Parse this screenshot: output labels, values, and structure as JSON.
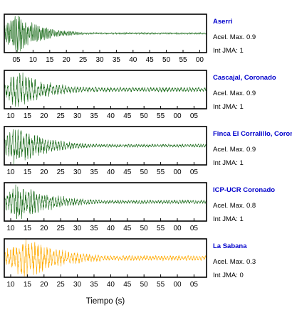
{
  "chart_data": {
    "type": "line",
    "xlabel": "Tiempo (s)",
    "panels": [
      {
        "station": "Aserri",
        "max_accel_label": "Acel. Max.",
        "max_accel": "0.9",
        "jma_label": "Int JMA:",
        "jma": "1",
        "color": "#1a6b1a",
        "tick_labels": [
          "05",
          "10",
          "15",
          "20",
          "25",
          "30",
          "35",
          "40",
          "45",
          "50",
          "55",
          "00"
        ],
        "signal": {
          "peak_s": 3.5,
          "amplitude": 0.95,
          "decay": 7.0,
          "tail": 0.04,
          "period_s": 0.45,
          "seed": 3
        }
      },
      {
        "station": "Cascajal, Coronado",
        "max_accel_label": "Acel. Max.",
        "max_accel": "0.9",
        "jma_label": "Int JMA:",
        "jma": "1",
        "color": "#1a6b1a",
        "tick_labels": [
          "10",
          "15",
          "20",
          "25",
          "30",
          "35",
          "40",
          "45",
          "50",
          "55",
          "00",
          "05"
        ],
        "signal": {
          "peak_s": 4.0,
          "amplitude": 0.85,
          "decay": 10.0,
          "tail": 0.12,
          "period_s": 0.9,
          "seed": 7
        }
      },
      {
        "station": "Finca El Corralillo, Coronado",
        "max_accel_label": "Acel. Max.",
        "max_accel": "0.9",
        "jma_label": "Int JMA:",
        "jma": "1",
        "color": "#1a6b1a",
        "tick_labels": [
          "10",
          "15",
          "20",
          "25",
          "30",
          "35",
          "40",
          "45",
          "50",
          "55",
          "00",
          "05"
        ],
        "signal": {
          "peak_s": 3.0,
          "amplitude": 0.9,
          "decay": 10.0,
          "tail": 0.08,
          "period_s": 0.8,
          "seed": 11
        }
      },
      {
        "station": "ICP-UCR Coronado",
        "max_accel_label": "Acel. Max.",
        "max_accel": "0.8",
        "jma_label": "Int JMA:",
        "jma": "1",
        "color": "#1a6b1a",
        "tick_labels": [
          "10",
          "15",
          "20",
          "25",
          "30",
          "35",
          "40",
          "45",
          "50",
          "55",
          "00",
          "05"
        ],
        "signal": {
          "peak_s": 4.0,
          "amplitude": 0.85,
          "decay": 11.0,
          "tail": 0.1,
          "period_s": 0.8,
          "seed": 19
        }
      },
      {
        "station": "La Sabana",
        "max_accel_label": "Acel. Max.",
        "max_accel": "0.3",
        "jma_label": "Int JMA:",
        "jma": "0",
        "color": "#ffaa00",
        "tick_labels": [
          "10",
          "15",
          "20",
          "25",
          "30",
          "35",
          "40",
          "45",
          "50",
          "55",
          "00",
          "05"
        ],
        "signal": {
          "peak_s": 6.0,
          "amplitude": 0.95,
          "decay": 12.0,
          "tail": 0.12,
          "period_s": 0.9,
          "seed": 23
        }
      }
    ]
  }
}
